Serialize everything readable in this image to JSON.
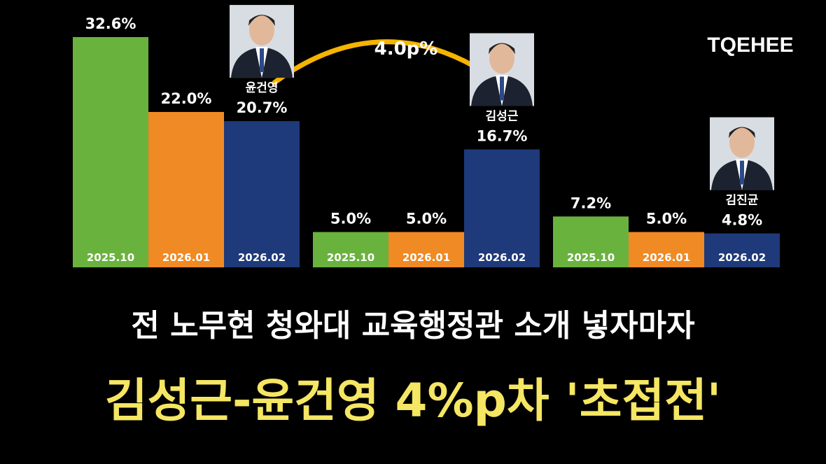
{
  "chart_data": {
    "type": "bar",
    "categories": [
      "윤건영",
      "김성근",
      "김진균"
    ],
    "series": [
      {
        "name": "2025.10",
        "color": "#6ab23e",
        "values": [
          32.6,
          5.0,
          7.2
        ],
        "value_labels": [
          "32.6%",
          "5.0%",
          "7.2%"
        ]
      },
      {
        "name": "2026.01",
        "color": "#f08a24",
        "values": [
          22.0,
          5.0,
          5.0
        ],
        "value_labels": [
          "22.0%",
          "5.0%",
          "5.0%"
        ]
      },
      {
        "name": "2026.02",
        "color": "#1f3a7a",
        "values": [
          20.7,
          16.7,
          4.8
        ],
        "value_labels": [
          "20.7%",
          "16.7%",
          "4.8%"
        ]
      }
    ],
    "annotation": "4.0p%"
  },
  "logo": "TQEHEE",
  "headline": {
    "line1": "전 노무현 청와대 교육행정관 소개 넣자마자",
    "line2": "김성근-윤건영 4%p차 '초접전'"
  }
}
